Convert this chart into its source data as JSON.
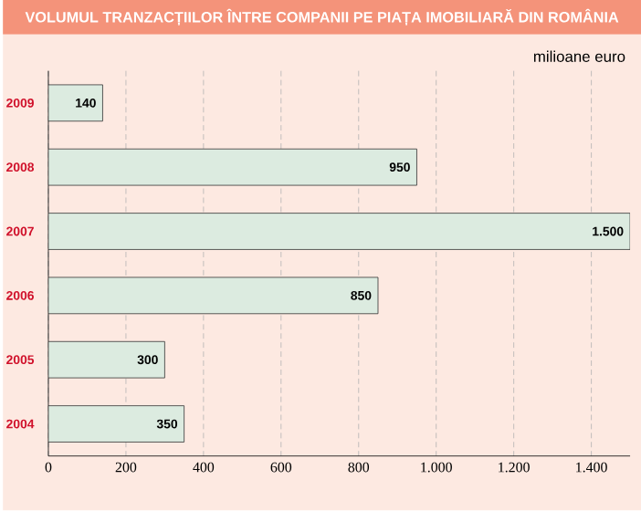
{
  "chart_data": {
    "type": "bar",
    "orientation": "horizontal",
    "title": "VOLUMUL TRANZACȚIILOR ÎNTRE COMPANII PE PIAȚA IMOBILIARĂ DIN ROMÂNIA",
    "subtitle": "milioane euro",
    "categories": [
      "2009",
      "2008",
      "2007",
      "2006",
      "2005",
      "2004"
    ],
    "values": [
      140,
      950,
      1500,
      850,
      300,
      350
    ],
    "value_labels": [
      "140",
      "950",
      "1.500",
      "850",
      "300",
      "350"
    ],
    "color": "#dcebe0",
    "xlim": [
      0,
      1500
    ],
    "xticks": [
      0,
      200,
      400,
      600,
      800,
      {
        "value": 1000,
        "label": "1.000"
      },
      {
        "value": 1200,
        "label": "1.200"
      },
      {
        "value": 1400,
        "label": "1.400"
      }
    ],
    "grid": "x"
  }
}
